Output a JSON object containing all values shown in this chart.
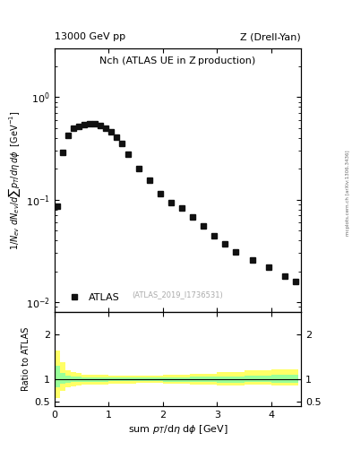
{
  "title_top": "13000 GeV pp",
  "title_right": "Z (Drell-Yan)",
  "plot_title": "Nch (ATLAS UE in Z production)",
  "xlabel": "sum $p_T$/dη dφ [GeV]",
  "ylabel_main": "1/N$_{ev}$ dN$_{ev}$/dsum p$_T$/dη dφ  [GeV$^{-1}$]",
  "ylabel_ratio": "Ratio to ATLAS",
  "watermark": "(ATLAS_2019_I1736531)",
  "right_label": "mcplots.cern.ch [arXiv:1306.3436]",
  "data_x": [
    0.05,
    0.15,
    0.25,
    0.35,
    0.45,
    0.55,
    0.65,
    0.75,
    0.85,
    0.95,
    1.05,
    1.15,
    1.25,
    1.35,
    1.55,
    1.75,
    1.95,
    2.15,
    2.35,
    2.55,
    2.75,
    2.95,
    3.15,
    3.35,
    3.65,
    3.95,
    4.25,
    4.45
  ],
  "data_y": [
    0.087,
    0.29,
    0.42,
    0.5,
    0.52,
    0.54,
    0.55,
    0.55,
    0.53,
    0.5,
    0.46,
    0.41,
    0.35,
    0.28,
    0.2,
    0.155,
    0.115,
    0.094,
    0.083,
    0.068,
    0.055,
    0.044,
    0.037,
    0.031,
    0.026,
    0.022,
    0.018,
    0.016
  ],
  "ratio_x": [
    0.05,
    0.15,
    0.25,
    0.35,
    0.45,
    0.75,
    1.25,
    1.75,
    2.25,
    2.75,
    3.25,
    3.75,
    4.25
  ],
  "ratio_bin_widths": [
    0.1,
    0.1,
    0.1,
    0.1,
    0.1,
    0.5,
    0.5,
    0.5,
    0.5,
    0.5,
    0.5,
    0.5,
    0.5
  ],
  "ratio_green_lo": [
    0.82,
    0.91,
    0.93,
    0.94,
    0.95,
    0.95,
    0.96,
    0.96,
    0.95,
    0.94,
    0.93,
    0.94,
    0.93
  ],
  "ratio_green_hi": [
    1.3,
    1.14,
    1.08,
    1.07,
    1.06,
    1.05,
    1.04,
    1.04,
    1.05,
    1.06,
    1.07,
    1.09,
    1.1
  ],
  "ratio_yellow_lo": [
    0.58,
    0.75,
    0.82,
    0.84,
    0.86,
    0.89,
    0.91,
    0.92,
    0.91,
    0.89,
    0.87,
    0.89,
    0.87
  ],
  "ratio_yellow_hi": [
    1.65,
    1.38,
    1.2,
    1.17,
    1.14,
    1.11,
    1.09,
    1.09,
    1.11,
    1.13,
    1.17,
    1.21,
    1.23
  ],
  "xlim": [
    0.0,
    4.55
  ],
  "ylim_main": [
    0.008,
    3.0
  ],
  "ylim_ratio": [
    0.4,
    2.5
  ],
  "ratio_yticks": [
    0.5,
    1.0,
    2.0
  ],
  "ratio_yticklabels": [
    "0.5",
    "1",
    "2"
  ],
  "marker_color": "#111111",
  "marker_style": "s",
  "marker_size": 4,
  "green_color": "#99ff99",
  "yellow_color": "#ffff66",
  "background_color": "#ffffff"
}
